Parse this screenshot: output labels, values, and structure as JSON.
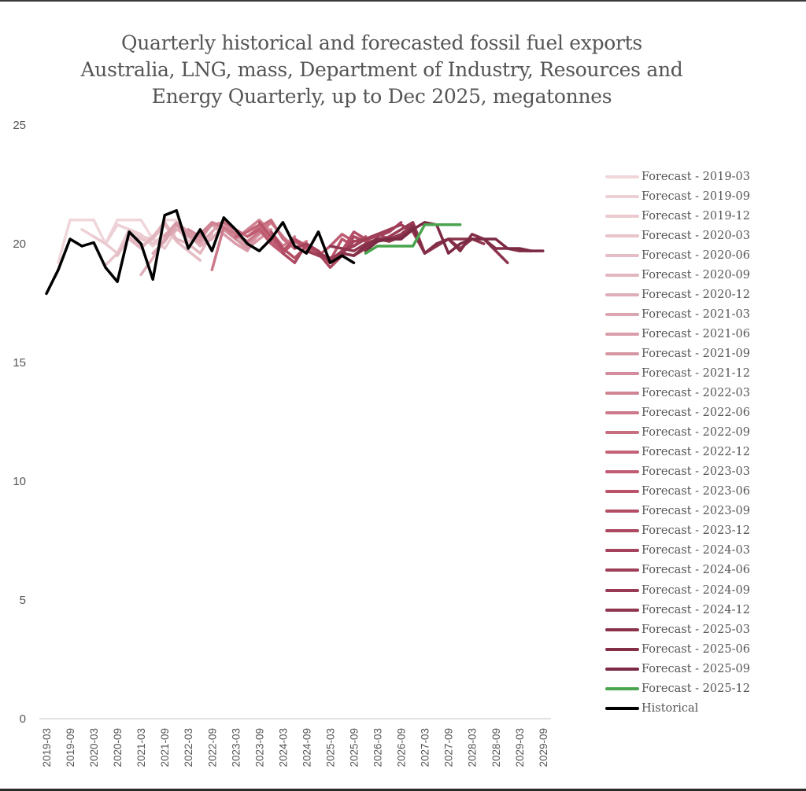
{
  "chart_data": {
    "type": "line",
    "title_lines": [
      "Quarterly historical and forecasted fossil fuel exports",
      "Australia, LNG, mass, Department of Industry, Resources and",
      "Energy Quarterly, up to Dec 2025, megatonnes"
    ],
    "xlabel": "",
    "ylabel": "",
    "ylim": [
      0,
      25
    ],
    "yticks": [
      0,
      5,
      10,
      15,
      20,
      25
    ],
    "grid": false,
    "legend_position": "right",
    "x": [
      "2019-03",
      "2019-06",
      "2019-09",
      "2019-12",
      "2020-03",
      "2020-06",
      "2020-09",
      "2020-12",
      "2021-03",
      "2021-06",
      "2021-09",
      "2021-12",
      "2022-03",
      "2022-06",
      "2022-09",
      "2022-12",
      "2023-03",
      "2023-06",
      "2023-09",
      "2023-12",
      "2024-03",
      "2024-06",
      "2024-09",
      "2024-12",
      "2025-03",
      "2025-06",
      "2025-09",
      "2025-12",
      "2026-03",
      "2026-06",
      "2026-09",
      "2026-12",
      "2027-03",
      "2027-06",
      "2027-09",
      "2027-12",
      "2028-03",
      "2028-06",
      "2028-09",
      "2028-12",
      "2029-03",
      "2029-06",
      "2029-09",
      "2029-12"
    ],
    "xtick_labels": [
      "2019-03",
      "2019-09",
      "2020-03",
      "2020-09",
      "2021-03",
      "2021-09",
      "2022-03",
      "2022-09",
      "2023-03",
      "2023-09",
      "2024-03",
      "2024-09",
      "2025-03",
      "2025-09",
      "2026-03",
      "2026-09",
      "2027-03",
      "2027-09",
      "2028-03",
      "2028-09",
      "2029-03",
      "2029-09"
    ],
    "series": [
      {
        "name": "Forecast - 2019-03",
        "color": "#f0d6da",
        "start": "2019-06",
        "values": [
          19.2,
          21.0,
          21.0,
          21.0,
          20.0,
          21.0,
          21.0,
          21.0,
          20.2,
          21.0,
          21.0
        ]
      },
      {
        "name": "Forecast - 2019-09",
        "color": "#edd0d5",
        "start": "2019-12",
        "values": [
          20.6,
          20.3,
          20.0,
          20.8,
          20.6,
          20.4,
          19.9,
          20.3
        ]
      },
      {
        "name": "Forecast - 2019-12",
        "color": "#ebcad0",
        "start": "2020-03",
        "values": [
          20.3,
          20.0,
          19.6,
          20.6,
          20.3,
          20.2,
          19.8,
          20.6,
          20.5
        ]
      },
      {
        "name": "Forecast - 2020-03",
        "color": "#e8c4cb",
        "start": "2020-06",
        "values": [
          19.1,
          19.6,
          20.4,
          20.2,
          20.0,
          20.4,
          20.7,
          20.1,
          20.3
        ]
      },
      {
        "name": "Forecast - 2020-06",
        "color": "#e5bec5",
        "start": "2020-09",
        "values": [
          19.5,
          20.3,
          19.9,
          20.2,
          20.8,
          20.1,
          19.7,
          19.3
        ]
      },
      {
        "name": "Forecast - 2020-09",
        "color": "#e2b6be",
        "start": "2020-12",
        "values": [
          20.2,
          19.8,
          20.3,
          20.9,
          20.2,
          20.0,
          19.6,
          20.4
        ]
      },
      {
        "name": "Forecast - 2020-12",
        "color": "#dfaeb8",
        "start": "2021-03",
        "values": [
          18.7,
          19.4,
          20.2,
          20.6,
          20.4,
          19.9,
          20.2,
          20.8,
          20.3
        ]
      },
      {
        "name": "Forecast - 2021-03",
        "color": "#dca6b1",
        "start": "2021-06",
        "values": [
          19.6,
          20.1,
          20.8,
          20.3,
          20.0,
          20.5,
          21.0,
          20.4,
          19.9
        ]
      },
      {
        "name": "Forecast - 2021-06",
        "color": "#d99eaa",
        "start": "2021-09",
        "values": [
          20.3,
          20.9,
          20.5,
          20.2,
          20.8,
          20.4,
          20.0,
          19.7,
          20.5
        ]
      },
      {
        "name": "Forecast - 2021-09",
        "color": "#d696a3",
        "start": "2021-12",
        "values": [
          20.8,
          20.4,
          20.1,
          20.9,
          20.6,
          20.2,
          19.8,
          20.2,
          20.6
        ]
      },
      {
        "name": "Forecast - 2021-12",
        "color": "#d28c9b",
        "start": "2022-03",
        "values": [
          20.6,
          20.3,
          20.8,
          20.9,
          20.5,
          20.0,
          20.4,
          20.9,
          20.3
        ]
      },
      {
        "name": "Forecast - 2022-03",
        "color": "#cf8393",
        "start": "2022-06",
        "values": [
          20.4,
          20.9,
          20.7,
          20.2,
          20.6,
          21.0,
          20.5,
          19.9,
          20.3
        ]
      },
      {
        "name": "Forecast - 2022-06",
        "color": "#cc798a",
        "start": "2022-09",
        "values": [
          18.9,
          20.7,
          20.4,
          20.1,
          20.5,
          20.9,
          20.3,
          19.8,
          20.1
        ]
      },
      {
        "name": "Forecast - 2022-09",
        "color": "#c86e81",
        "start": "2022-12",
        "values": [
          20.9,
          20.6,
          20.3,
          20.7,
          21.0,
          20.2,
          19.8,
          20.0
        ]
      },
      {
        "name": "Forecast - 2022-12",
        "color": "#c46378",
        "start": "2023-03",
        "values": [
          20.3,
          20.5,
          20.8,
          20.1,
          19.7,
          20.2,
          19.9,
          19.6
        ]
      },
      {
        "name": "Forecast - 2023-03",
        "color": "#bf5b72",
        "start": "2023-06",
        "values": [
          20.3,
          20.6,
          20.0,
          19.6,
          20.1,
          19.8,
          19.5,
          19.9,
          20.4,
          20.1
        ]
      },
      {
        "name": "Forecast - 2023-06",
        "color": "#b9546b",
        "start": "2023-09",
        "values": [
          20.9,
          20.3,
          19.7,
          20.2,
          19.9,
          19.6,
          19.3,
          20.2,
          19.9,
          20.3
        ]
      },
      {
        "name": "Forecast - 2023-09",
        "color": "#b34e66",
        "start": "2023-12",
        "values": [
          20.5,
          19.8,
          19.4,
          19.9,
          19.7,
          19.2,
          19.7,
          20.5,
          20.2,
          20.4
        ]
      },
      {
        "name": "Forecast - 2023-12",
        "color": "#ad4861",
        "start": "2024-03",
        "values": [
          19.6,
          19.2,
          20.0,
          19.6,
          19.0,
          19.5,
          20.3,
          20.1,
          20.4,
          20.2
        ]
      },
      {
        "name": "Forecast - 2024-03",
        "color": "#a6435c",
        "start": "2024-06",
        "values": [
          19.8,
          20.0,
          19.7,
          19.2,
          19.6,
          20.1,
          20.2,
          20.3,
          20.5,
          20.9
        ]
      },
      {
        "name": "Forecast - 2024-06",
        "color": "#9f3e57",
        "start": "2024-09",
        "values": [
          19.7,
          19.5,
          19.3,
          19.7,
          19.9,
          20.2,
          20.4,
          20.6,
          20.8,
          20.5,
          19.6
        ]
      },
      {
        "name": "Forecast - 2024-09",
        "color": "#983a53",
        "start": "2024-12",
        "values": [
          19.6,
          19.4,
          19.6,
          19.5,
          19.8,
          20.1,
          20.3,
          20.6,
          20.9,
          19.6,
          19.9,
          20.2
        ]
      },
      {
        "name": "Forecast - 2024-12",
        "color": "#91364f",
        "start": "2025-03",
        "values": [
          19.9,
          19.8,
          19.7,
          20.0,
          20.2,
          20.2,
          20.4,
          20.8,
          19.6,
          19.9,
          20.2,
          19.8,
          20.2,
          20.0
        ]
      },
      {
        "name": "Forecast - 2025-03",
        "color": "#8a324b",
        "start": "2025-06",
        "values": [
          19.6,
          19.5,
          19.9,
          20.2,
          20.1,
          20.3,
          20.6,
          19.6,
          20.0,
          20.2,
          20.2,
          20.2,
          20.2,
          19.7,
          19.2
        ]
      },
      {
        "name": "Forecast - 2025-06",
        "color": "#832e47",
        "start": "2025-09",
        "values": [
          19.5,
          19.9,
          20.2,
          20.2,
          20.2,
          20.7,
          19.6,
          20.0,
          20.2,
          19.7,
          20.4,
          20.2,
          19.8,
          19.8,
          19.7,
          19.7
        ]
      },
      {
        "name": "Forecast - 2025-09",
        "color": "#7c2a43",
        "start": "2025-12",
        "values": [
          19.7,
          20.1,
          20.2,
          20.2,
          20.6,
          20.9,
          20.8,
          19.6,
          20.0,
          20.2,
          20.2,
          20.2,
          19.8,
          19.8,
          19.7,
          19.7
        ]
      },
      {
        "name": "Forecast - 2025-12",
        "color": "#4aa54f",
        "start": "2025-12",
        "values": [
          19.6,
          19.9,
          19.9,
          19.9,
          19.9,
          20.8,
          20.8,
          20.8,
          20.8
        ]
      },
      {
        "name": "Historical",
        "color": "#000000",
        "start": "2019-03",
        "values": [
          17.9,
          18.9,
          20.2,
          19.9,
          20.05,
          19.0,
          18.4,
          20.5,
          20.0,
          18.5,
          21.2,
          21.4,
          19.8,
          20.6,
          19.7,
          21.1,
          20.6,
          20.0,
          19.7,
          20.2,
          20.9,
          19.9,
          19.6,
          20.5,
          19.2,
          19.5,
          19.2
        ]
      }
    ]
  }
}
